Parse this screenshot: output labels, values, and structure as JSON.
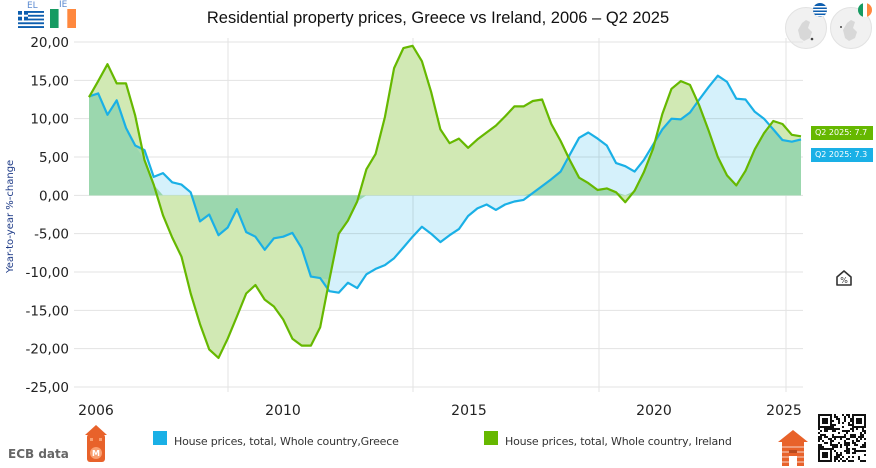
{
  "header": {
    "title": "Residential property prices, Greece vs Ireland, 2006 – Q2 2025",
    "flags": [
      {
        "code": "EL",
        "country": "Greece"
      },
      {
        "code": "IE",
        "country": "Ireland"
      }
    ]
  },
  "badges": {
    "ireland": "Q2 2025: 7.7",
    "greece": "Q2 2025: 7.3"
  },
  "colors": {
    "greece": "#1ab0e6",
    "ireland": "#66b800",
    "greece_fill": "#b3e5f7",
    "ireland_fill": "#d1e9b4",
    "overlap_fill": "#9bd7ae",
    "axis_label": "#1f3c88"
  },
  "footer": {
    "source": "ECB data",
    "legend": [
      {
        "label": "House prices, total, Whole country,Greece",
        "series": "greece"
      },
      {
        "label": "House prices, total, Whole country, Ireland",
        "series": "ireland"
      }
    ]
  },
  "icons": {
    "left_house": "house-logo-icon",
    "right_house": "brick-house-icon",
    "qr": "qr-code-icon",
    "side": "house-percent-icon"
  },
  "chart_data": {
    "type": "area",
    "title": "Residential property prices, Greece vs Ireland, 2006 – Q2 2025",
    "xlabel": "",
    "ylabel": "Year-to-year %-change",
    "ylim": [
      -25,
      20
    ],
    "yticks": [
      20,
      15,
      10,
      5,
      0,
      -5,
      -10,
      -15,
      -20,
      -25
    ],
    "ytick_labels": [
      "20,00",
      "15,00",
      "10,00",
      "5,00",
      "0,00",
      "-5,00",
      "-10,00",
      "-15,00",
      "-20,00",
      "-25,00"
    ],
    "xticks": [
      2006,
      2010,
      2015,
      2020,
      2025
    ],
    "x_start": "2006 Q1",
    "x_end": "2025 Q2",
    "frequency": "quarterly",
    "grid": true,
    "legend_position": "bottom",
    "series": [
      {
        "name": "House prices, total, Whole country,Greece",
        "key": "greece",
        "values": [
          12.9,
          13.3,
          10.5,
          12.4,
          8.8,
          6.5,
          5.9,
          2.4,
          2.9,
          1.7,
          1.4,
          0.4,
          -3.4,
          -2.5,
          -5.2,
          -4.2,
          -1.8,
          -4.8,
          -5.4,
          -7.1,
          -5.6,
          -5.4,
          -4.9,
          -6.9,
          -10.6,
          -10.8,
          -12.5,
          -12.7,
          -11.4,
          -12.1,
          -10.3,
          -9.6,
          -9.1,
          -8.2,
          -6.8,
          -5.4,
          -4.1,
          -5.0,
          -6.1,
          -5.2,
          -4.4,
          -2.7,
          -1.7,
          -1.2,
          -1.9,
          -1.2,
          -0.8,
          -0.6,
          0.3,
          1.2,
          2.1,
          3.1,
          5.3,
          7.5,
          8.2,
          7.4,
          6.5,
          4.2,
          3.8,
          3.1,
          4.6,
          6.6,
          8.6,
          10.0,
          9.9,
          10.8,
          12.5,
          14.1,
          15.6,
          14.8,
          12.6,
          12.5,
          10.9,
          10.0,
          8.6,
          7.2,
          7.0,
          7.3
        ]
      },
      {
        "name": "House prices, total, Whole country, Ireland",
        "key": "ireland",
        "values": [
          12.8,
          14.9,
          17.1,
          14.6,
          14.6,
          10.4,
          4.6,
          1.4,
          -2.6,
          -5.5,
          -8.0,
          -12.8,
          -16.8,
          -20.1,
          -21.2,
          -18.7,
          -15.8,
          -12.8,
          -11.7,
          -13.6,
          -14.5,
          -16.2,
          -18.7,
          -19.6,
          -19.6,
          -17.2,
          -11.0,
          -5.0,
          -3.3,
          -0.8,
          3.4,
          5.4,
          10.2,
          16.6,
          19.2,
          19.5,
          17.5,
          13.5,
          8.6,
          6.8,
          7.4,
          6.2,
          7.3,
          8.2,
          9.1,
          10.3,
          11.6,
          11.6,
          12.3,
          12.5,
          9.3,
          7.1,
          4.6,
          2.3,
          1.6,
          0.7,
          0.9,
          0.4,
          -0.9,
          0.6,
          3.0,
          6.1,
          10.6,
          13.9,
          14.9,
          14.4,
          11.7,
          8.5,
          5.0,
          2.6,
          1.3,
          3.2,
          6.0,
          8.1,
          9.7,
          9.3,
          7.9,
          7.7
        ]
      }
    ],
    "annotations": [
      "Q2 2025: 7.7",
      "Q2 2025: 7.3"
    ]
  }
}
